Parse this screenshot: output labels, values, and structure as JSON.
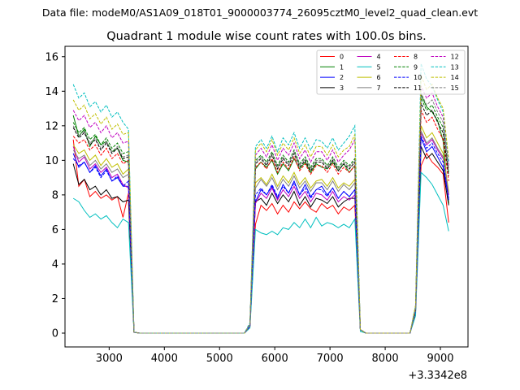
{
  "figure": {
    "suptitle": "Data file: modeM0/AS1A09_018T01_9000003774_26095cztM0_level2_quad_clean.evt"
  },
  "chart_data": {
    "type": "line",
    "title": "Quadrant 1 module wise count rates with 100.0s bins.",
    "xlabel": "",
    "ylabel": "",
    "x_offset_label": "+3.3342e8",
    "xlim": [
      2200,
      9500
    ],
    "ylim": [
      -0.8,
      16.6
    ],
    "x_ticks": [
      3000,
      4000,
      5000,
      6000,
      7000,
      8000,
      9000
    ],
    "y_ticks": [
      0,
      2,
      4,
      6,
      8,
      10,
      12,
      14,
      16
    ],
    "x_tick_labels": [
      "3000",
      "4000",
      "5000",
      "6000",
      "7000",
      "8000",
      "9000"
    ],
    "y_tick_labels": [
      "0",
      "2",
      "4",
      "6",
      "8",
      "10",
      "12",
      "14",
      "16"
    ],
    "grid": false,
    "legend_placement": "top-right",
    "legend_columns": 4,
    "x": [
      2350,
      2450,
      2550,
      2650,
      2750,
      2850,
      2950,
      3050,
      3150,
      3250,
      3350,
      3450,
      3550,
      3650,
      3750,
      3850,
      3950,
      4050,
      4150,
      4250,
      4350,
      4450,
      4550,
      4650,
      4750,
      4850,
      4950,
      5050,
      5150,
      5250,
      5350,
      5450,
      5550,
      5650,
      5750,
      5850,
      5950,
      6050,
      6150,
      6250,
      6350,
      6450,
      6550,
      6650,
      6750,
      6850,
      6950,
      7050,
      7150,
      7250,
      7350,
      7450,
      7550,
      7650,
      7750,
      7850,
      7950,
      8050,
      8150,
      8250,
      8350,
      8450,
      8550,
      8650,
      8750,
      8850,
      8950,
      9050,
      9150
    ],
    "series": [
      {
        "name": "0",
        "color": "#ff0000",
        "dash": "solid",
        "values": [
          11.2,
          8.5,
          8.9,
          7.9,
          8.2,
          7.8,
          8.0,
          7.7,
          7.9,
          6.7,
          8.1,
          0.05,
          0,
          0,
          0,
          0,
          0,
          0,
          0,
          0,
          0,
          0,
          0,
          0,
          0,
          0,
          0,
          0,
          0,
          0,
          0,
          0,
          0.4,
          6.3,
          7.4,
          7.1,
          7.5,
          6.9,
          7.4,
          7.0,
          7.6,
          7.2,
          7.6,
          7.2,
          7.0,
          7.5,
          7.2,
          7.4,
          6.9,
          7.3,
          7.1,
          7.4,
          0.2,
          0,
          0,
          0,
          0,
          0,
          0,
          0,
          0,
          0,
          1.2,
          9.7,
          10.4,
          9.9,
          9.6,
          9.2,
          6.4
        ]
      },
      {
        "name": "1",
        "color": "#008000",
        "dash": "solid",
        "values": [
          12.6,
          11.4,
          11.8,
          10.8,
          11.4,
          10.9,
          11.1,
          10.5,
          10.7,
          10.0,
          9.9,
          0.05,
          0,
          0,
          0,
          0,
          0,
          0,
          0,
          0,
          0,
          0,
          0,
          0,
          0,
          0,
          0,
          0,
          0,
          0,
          0,
          0,
          0.5,
          9.5,
          9.9,
          9.6,
          10.0,
          9.2,
          9.8,
          9.4,
          10.1,
          9.5,
          9.9,
          9.3,
          9.8,
          9.6,
          9.5,
          9.9,
          9.4,
          9.8,
          9.3,
          9.7,
          0.2,
          0,
          0,
          0,
          0,
          0,
          0,
          0,
          0,
          0,
          1.4,
          13.8,
          13.1,
          12.8,
          12.3,
          11.1,
          7.5
        ]
      },
      {
        "name": "2",
        "color": "#0000ff",
        "dash": "solid",
        "values": [
          10.4,
          9.6,
          9.9,
          9.3,
          9.7,
          9.1,
          9.5,
          8.8,
          9.0,
          8.5,
          8.5,
          0.05,
          0,
          0,
          0,
          0,
          0,
          0,
          0,
          0,
          0,
          0,
          0,
          0,
          0,
          0,
          0,
          0,
          0,
          0,
          0,
          0,
          0.4,
          7.6,
          8.3,
          8.0,
          8.5,
          7.8,
          8.6,
          8.1,
          8.8,
          8.0,
          8.6,
          7.9,
          8.3,
          8.5,
          8.0,
          8.4,
          7.8,
          8.2,
          7.9,
          8.3,
          0.2,
          0,
          0,
          0,
          0,
          0,
          0,
          0,
          0,
          0,
          1.3,
          11.3,
          10.5,
          10.8,
          10.2,
          9.6,
          7.8
        ]
      },
      {
        "name": "3",
        "color": "#000000",
        "dash": "solid",
        "values": [
          9.8,
          8.6,
          8.9,
          8.3,
          8.5,
          8.0,
          8.3,
          7.8,
          7.9,
          7.6,
          7.7,
          0.05,
          0,
          0,
          0,
          0,
          0,
          0,
          0,
          0,
          0,
          0,
          0,
          0,
          0,
          0,
          0,
          0,
          0,
          0,
          0,
          0,
          0.4,
          7.6,
          7.8,
          7.4,
          8.1,
          7.5,
          8.0,
          7.6,
          8.2,
          7.4,
          7.9,
          7.3,
          7.8,
          7.7,
          7.5,
          7.9,
          7.3,
          7.6,
          7.8,
          7.8,
          0.2,
          0,
          0,
          0,
          0,
          0,
          0,
          0,
          0,
          0,
          1.2,
          10.8,
          10.1,
          10.4,
          9.9,
          9.4,
          7.4
        ]
      },
      {
        "name": "4",
        "color": "#bf00bf",
        "dash": "solid",
        "values": [
          10.8,
          9.9,
          10.2,
          9.5,
          9.8,
          9.3,
          9.6,
          9.0,
          9.2,
          8.6,
          8.4,
          0.05,
          0,
          0,
          0,
          0,
          0,
          0,
          0,
          0,
          0,
          0,
          0,
          0,
          0,
          0,
          0,
          0,
          0,
          0,
          0,
          0,
          0.4,
          7.5,
          8.1,
          7.8,
          8.4,
          7.7,
          8.3,
          7.9,
          8.5,
          7.8,
          8.2,
          7.6,
          8.1,
          8.0,
          7.7,
          8.2,
          7.6,
          7.9,
          7.7,
          8.0,
          0.2,
          0,
          0,
          0,
          0,
          0,
          0,
          0,
          0,
          0,
          1.3,
          11.6,
          10.9,
          11.2,
          10.6,
          10.1,
          8.0
        ]
      },
      {
        "name": "5",
        "color": "#00bfbf",
        "dash": "solid",
        "values": [
          7.8,
          7.6,
          7.1,
          6.7,
          6.9,
          6.6,
          6.8,
          6.4,
          6.1,
          6.6,
          6.4,
          0.05,
          0,
          0,
          0,
          0,
          0,
          0,
          0,
          0,
          0,
          0,
          0,
          0,
          0,
          0,
          0,
          0,
          0,
          0,
          0,
          0,
          0.3,
          6.0,
          5.8,
          5.7,
          5.9,
          5.7,
          6.1,
          6.0,
          6.4,
          6.1,
          6.6,
          6.1,
          6.7,
          6.2,
          6.4,
          6.3,
          6.1,
          6.3,
          6.1,
          6.6,
          0.1,
          0,
          0,
          0,
          0,
          0,
          0,
          0,
          0,
          0,
          1.0,
          9.3,
          9.0,
          8.6,
          8.0,
          7.4,
          5.9
        ]
      },
      {
        "name": "6",
        "color": "#bfbf00",
        "dash": "solid",
        "values": [
          10.9,
          10.4,
          10.6,
          10.0,
          10.3,
          9.7,
          10.1,
          9.6,
          9.8,
          9.2,
          9.5,
          0.05,
          0,
          0,
          0,
          0,
          0,
          0,
          0,
          0,
          0,
          0,
          0,
          0,
          0,
          0,
          0,
          0,
          0,
          0,
          0,
          0,
          0.4,
          8.7,
          9.0,
          8.6,
          9.2,
          8.5,
          9.1,
          8.7,
          9.3,
          8.6,
          9.0,
          8.4,
          8.8,
          8.9,
          8.5,
          9.0,
          8.4,
          8.7,
          8.5,
          8.9,
          0.2,
          0,
          0,
          0,
          0,
          0,
          0,
          0,
          0,
          0,
          1.3,
          12.0,
          11.3,
          11.6,
          11.0,
          10.4,
          8.2
        ]
      },
      {
        "name": "7",
        "color": "#808080",
        "dash": "solid",
        "values": [
          10.6,
          10.1,
          10.3,
          9.7,
          10.0,
          9.5,
          9.8,
          9.3,
          9.5,
          9.0,
          9.2,
          0.05,
          0,
          0,
          0,
          0,
          0,
          0,
          0,
          0,
          0,
          0,
          0,
          0,
          0,
          0,
          0,
          0,
          0,
          0,
          0,
          0,
          0.4,
          8.4,
          8.9,
          8.5,
          9.0,
          8.3,
          8.9,
          8.5,
          9.1,
          8.4,
          8.8,
          8.2,
          8.7,
          8.7,
          8.3,
          8.8,
          8.2,
          8.6,
          8.3,
          8.7,
          0.2,
          0,
          0,
          0,
          0,
          0,
          0,
          0,
          0,
          0,
          1.3,
          11.7,
          11.0,
          11.3,
          10.7,
          10.2,
          8.1
        ]
      },
      {
        "name": "8",
        "color": "#ff0000",
        "dash": "dashed",
        "values": [
          11.4,
          11.0,
          11.2,
          10.6,
          10.9,
          10.3,
          10.7,
          10.1,
          10.4,
          9.8,
          10.0,
          0.05,
          0,
          0,
          0,
          0,
          0,
          0,
          0,
          0,
          0,
          0,
          0,
          0,
          0,
          0,
          0,
          0,
          0,
          0,
          0,
          0,
          0.5,
          9.6,
          9.9,
          9.5,
          10.1,
          9.3,
          9.9,
          9.5,
          10.2,
          9.4,
          9.8,
          9.2,
          9.7,
          9.7,
          9.3,
          9.8,
          9.2,
          9.6,
          9.3,
          9.7,
          0.2,
          0,
          0,
          0,
          0,
          0,
          0,
          0,
          0,
          0,
          1.4,
          12.9,
          12.2,
          12.5,
          11.8,
          11.2,
          8.8
        ]
      },
      {
        "name": "9",
        "color": "#008000",
        "dash": "dashed",
        "values": [
          12.2,
          11.6,
          11.9,
          11.2,
          11.5,
          10.9,
          11.3,
          10.7,
          11.0,
          10.4,
          10.5,
          0.05,
          0,
          0,
          0,
          0,
          0,
          0,
          0,
          0,
          0,
          0,
          0,
          0,
          0,
          0,
          0,
          0,
          0,
          0,
          0,
          0,
          0.5,
          10.0,
          10.3,
          9.9,
          10.5,
          9.7,
          10.3,
          9.9,
          10.6,
          9.8,
          10.2,
          9.6,
          10.1,
          10.1,
          9.7,
          10.2,
          9.6,
          10.0,
          9.7,
          10.1,
          0.2,
          0,
          0,
          0,
          0,
          0,
          0,
          0,
          0,
          0,
          1.5,
          13.6,
          12.9,
          13.2,
          12.5,
          11.9,
          9.3
        ]
      },
      {
        "name": "10",
        "color": "#0000ff",
        "dash": "dashed",
        "values": [
          10.1,
          9.7,
          9.9,
          9.3,
          9.6,
          9.0,
          9.4,
          8.8,
          9.1,
          8.5,
          8.8,
          0.05,
          0,
          0,
          0,
          0,
          0,
          0,
          0,
          0,
          0,
          0,
          0,
          0,
          0,
          0,
          0,
          0,
          0,
          0,
          0,
          0,
          0.4,
          8.0,
          8.4,
          8.0,
          8.6,
          7.9,
          8.5,
          8.1,
          8.7,
          8.0,
          8.4,
          7.8,
          8.3,
          8.3,
          7.9,
          8.4,
          7.8,
          8.2,
          7.9,
          8.3,
          0.2,
          0,
          0,
          0,
          0,
          0,
          0,
          0,
          0,
          0,
          1.3,
          11.4,
          10.7,
          11.0,
          10.4,
          9.9,
          7.7
        ]
      },
      {
        "name": "11",
        "color": "#000000",
        "dash": "dashed",
        "values": [
          11.9,
          11.3,
          11.6,
          10.9,
          11.2,
          10.6,
          11.0,
          10.4,
          10.7,
          10.1,
          10.2,
          0.05,
          0,
          0,
          0,
          0,
          0,
          0,
          0,
          0,
          0,
          0,
          0,
          0,
          0,
          0,
          0,
          0,
          0,
          0,
          0,
          0,
          0.5,
          9.8,
          10.1,
          9.7,
          10.3,
          9.5,
          10.1,
          9.7,
          10.4,
          9.6,
          10.0,
          9.4,
          9.9,
          9.9,
          9.5,
          10.0,
          9.4,
          9.8,
          9.5,
          9.9,
          0.2,
          0,
          0,
          0,
          0,
          0,
          0,
          0,
          0,
          0,
          1.4,
          13.3,
          12.6,
          12.9,
          12.2,
          11.6,
          9.1
        ]
      },
      {
        "name": "12",
        "color": "#bf00bf",
        "dash": "dashed",
        "values": [
          12.9,
          12.3,
          12.6,
          11.9,
          12.2,
          11.6,
          12.0,
          11.3,
          11.6,
          11.0,
          11.1,
          0.05,
          0,
          0,
          0,
          0,
          0,
          0,
          0,
          0,
          0,
          0,
          0,
          0,
          0,
          0,
          0,
          0,
          0,
          0,
          0,
          0,
          0.5,
          10.3,
          10.7,
          10.2,
          10.9,
          10.0,
          10.7,
          10.3,
          11.0,
          10.1,
          10.6,
          9.9,
          10.5,
          10.5,
          10.0,
          10.6,
          9.9,
          10.3,
          10.6,
          11.2,
          0.2,
          0,
          0,
          0,
          0,
          0,
          0,
          0,
          0,
          0,
          1.5,
          14.3,
          13.6,
          13.9,
          13.1,
          12.5,
          9.7
        ]
      },
      {
        "name": "13",
        "color": "#00bfbf",
        "dash": "dashed",
        "values": [
          14.4,
          13.6,
          13.9,
          13.1,
          13.4,
          12.8,
          13.2,
          12.5,
          12.8,
          12.2,
          11.8,
          0.05,
          0,
          0,
          0,
          0,
          0,
          0,
          0,
          0,
          0,
          0,
          0,
          0,
          0,
          0,
          0,
          0,
          0,
          0,
          0,
          0,
          0.6,
          10.8,
          11.2,
          10.7,
          11.4,
          10.5,
          11.3,
          10.9,
          11.6,
          10.7,
          11.3,
          10.6,
          11.2,
          11.1,
          10.7,
          11.3,
          10.6,
          11.0,
          11.4,
          12.0,
          0.2,
          0,
          0,
          0,
          0,
          0,
          0,
          0,
          0,
          0,
          1.6,
          15.6,
          14.7,
          14.3,
          13.5,
          12.8,
          9.9
        ]
      },
      {
        "name": "14",
        "color": "#bfbf00",
        "dash": "dashed",
        "values": [
          13.5,
          12.9,
          13.2,
          12.4,
          12.7,
          12.1,
          12.5,
          11.8,
          12.1,
          11.5,
          11.6,
          0.05,
          0,
          0,
          0,
          0,
          0,
          0,
          0,
          0,
          0,
          0,
          0,
          0,
          0,
          0,
          0,
          0,
          0,
          0,
          0,
          0,
          0.5,
          10.6,
          11.0,
          10.5,
          11.2,
          10.3,
          11.0,
          10.6,
          11.3,
          10.4,
          10.9,
          10.2,
          10.8,
          10.8,
          10.3,
          10.9,
          10.2,
          10.6,
          10.8,
          11.5,
          0.2,
          0,
          0,
          0,
          0,
          0,
          0,
          0,
          0,
          0,
          1.6,
          14.9,
          14.1,
          14.4,
          13.6,
          13.0,
          10.1
        ]
      },
      {
        "name": "15",
        "color": "#808080",
        "dash": "dashed",
        "values": [
          12.0,
          11.4,
          11.7,
          11.0,
          11.3,
          10.7,
          11.1,
          10.5,
          10.8,
          10.2,
          10.3,
          0.05,
          0,
          0,
          0,
          0,
          0,
          0,
          0,
          0,
          0,
          0,
          0,
          0,
          0,
          0,
          0,
          0,
          0,
          0,
          0,
          0,
          0.5,
          9.9,
          10.2,
          9.8,
          10.4,
          9.6,
          10.2,
          9.8,
          10.5,
          9.7,
          10.1,
          9.5,
          10.0,
          10.0,
          9.6,
          10.1,
          9.5,
          9.9,
          9.6,
          10.0,
          0.2,
          0,
          0,
          0,
          0,
          0,
          0,
          0,
          0,
          0,
          1.4,
          13.9,
          13.2,
          13.5,
          12.8,
          12.2,
          9.5
        ]
      }
    ]
  }
}
